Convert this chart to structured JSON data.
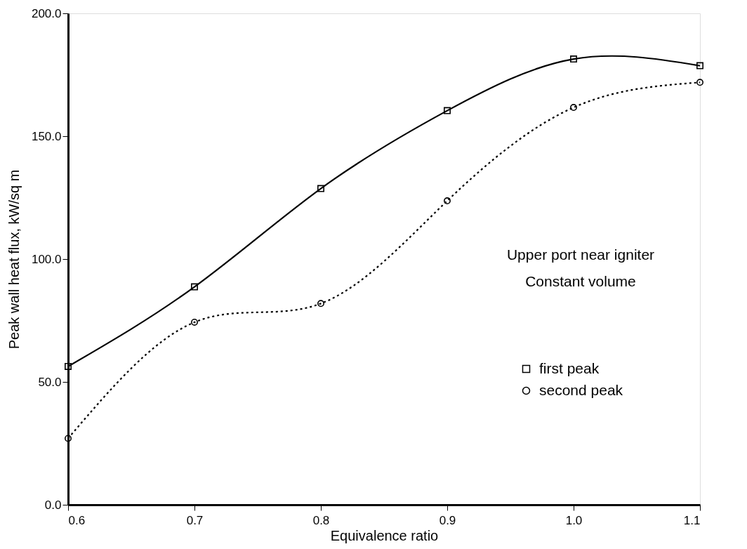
{
  "chart_data": {
    "type": "line",
    "xlabel": "Equivalence ratio",
    "ylabel": "Peak wall heat flux, kW/sq m",
    "x": [
      0.6,
      0.7,
      0.8,
      0.9,
      1.0,
      1.1
    ],
    "series": [
      {
        "name": "first peak",
        "color": "#000000",
        "values": [
          56.3,
          88.7,
          128.7,
          160.4,
          181.4,
          178.7
        ],
        "marker": "square",
        "line_style": "solid"
      },
      {
        "name": "second peak",
        "color": "#000000",
        "values": [
          27.0,
          74.3,
          81.9,
          123.7,
          161.7,
          171.9
        ],
        "marker": "circle",
        "line_style": "dotted"
      }
    ],
    "xlim": [
      0.6,
      1.1
    ],
    "xticks": [
      {
        "value": 0.6,
        "label": "0.6"
      },
      {
        "value": 0.7,
        "label": "0.7"
      },
      {
        "value": 0.8,
        "label": "0.8"
      },
      {
        "value": 0.9,
        "label": "0.9"
      },
      {
        "value": 1.0,
        "label": "1.0"
      },
      {
        "value": 1.1,
        "label": "1.1"
      }
    ],
    "ylim": [
      0,
      200
    ],
    "yticks": [
      {
        "value": 0,
        "label": "0.0"
      },
      {
        "value": 50,
        "label": "50.0"
      },
      {
        "value": 100,
        "label": "100.0"
      },
      {
        "value": 150,
        "label": "150.0"
      },
      {
        "value": 200,
        "label": "200.0"
      }
    ],
    "annotations": [
      "Upper port near igniter",
      "Constant volume"
    ],
    "legend": "right",
    "grid": false
  }
}
